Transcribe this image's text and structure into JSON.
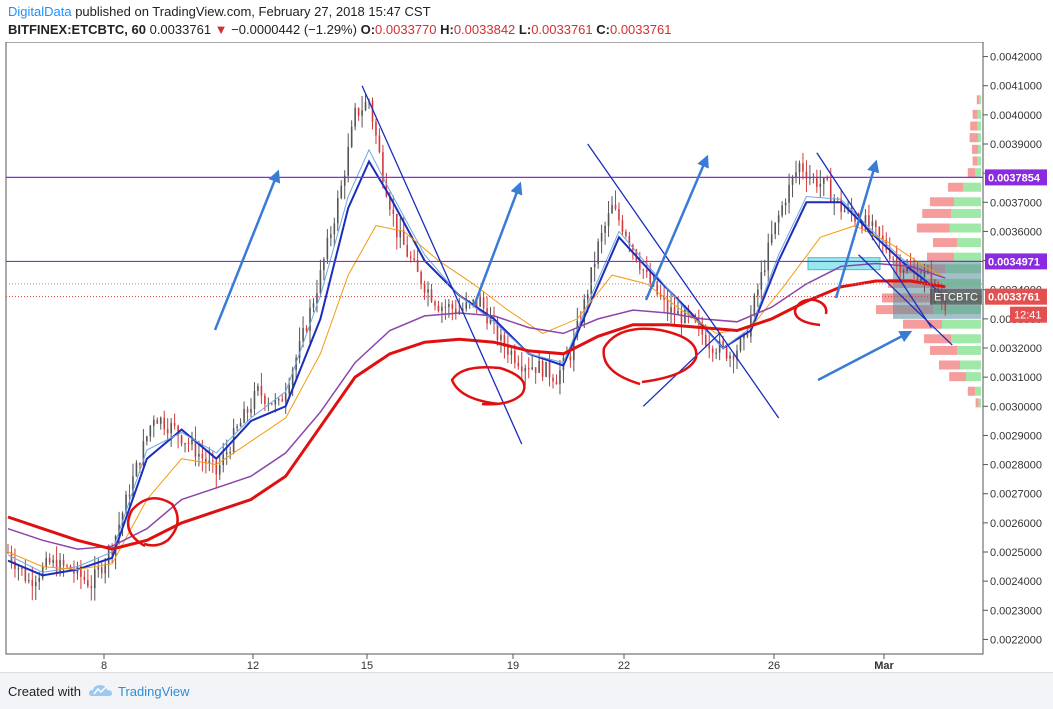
{
  "header": {
    "brand": "DigitalData",
    "published": " published on TradingView.com, February 27, 2018 15:47 CST",
    "symbol": "BITFINEX:ETCBTC, 60",
    "last": "0.0033761",
    "change_arrow": "▼",
    "change": "−0.0000442 (−1.29%)",
    "o_label": "O:",
    "o_value": "0.0033770",
    "h_label": "H:",
    "h_value": "0.0033842",
    "l_label": "L:",
    "l_value": "0.0033761",
    "c_label": "C:",
    "c_value": "0.0033761"
  },
  "footer": {
    "created_with": "Created with",
    "tradingview": "TradingView"
  },
  "colors": {
    "candle_up": "#555555",
    "candle_down": "#d23b3b",
    "ma_fast": "#1a2dbd",
    "ma_light": "#6fa8dc",
    "ma_orange": "#f39c12",
    "ma_purple": "#8e44ad",
    "ma_red": "#e01010",
    "level_line": "#8a2be2",
    "annotation_blue": "#3a7bd5",
    "annotation_red": "#e01010",
    "trend_line": "#1a2dbd"
  },
  "chart_data": {
    "type": "candlestick",
    "x_ticks": [
      "8",
      "12",
      "15",
      "19",
      "22",
      "26",
      "Mar"
    ],
    "y_ticks": [
      "0.0042000",
      "0.0041000",
      "0.0040000",
      "0.0039000",
      "0.0038000",
      "0.0037000",
      "0.0036000",
      "0.0035000",
      "0.0034000",
      "0.0033000",
      "0.0032000",
      "0.0031000",
      "0.0030000",
      "0.0029000",
      "0.0028000",
      "0.0027000",
      "0.0026000",
      "0.0025000",
      "0.0024000",
      "0.0023000",
      "0.0022000"
    ],
    "ylim": [
      0.00215,
      0.00425
    ],
    "levels": [
      {
        "label": "0.0037854",
        "value": 0.0037854
      },
      {
        "label": "0.0034971",
        "value": 0.0034971
      }
    ],
    "current_price": {
      "label": "0.0033761",
      "value": 0.0033761
    },
    "countdown": "12:41",
    "symbol_tag": "ETCBTC",
    "price_path": [
      [
        0,
        0.0025
      ],
      [
        6,
        0.0024
      ],
      [
        12,
        0.00246
      ],
      [
        18,
        0.00244
      ],
      [
        24,
        0.00239
      ],
      [
        30,
        0.00252
      ],
      [
        36,
        0.00275
      ],
      [
        42,
        0.00297
      ],
      [
        48,
        0.00292
      ],
      [
        54,
        0.00285
      ],
      [
        60,
        0.00277
      ],
      [
        66,
        0.00292
      ],
      [
        72,
        0.00305
      ],
      [
        78,
        0.003
      ],
      [
        84,
        0.0032
      ],
      [
        90,
        0.00345
      ],
      [
        96,
        0.00375
      ],
      [
        100,
        0.004
      ],
      [
        104,
        0.00405
      ],
      [
        108,
        0.0038
      ],
      [
        112,
        0.0036
      ],
      [
        118,
        0.00345
      ],
      [
        124,
        0.00335
      ],
      [
        130,
        0.00333
      ],
      [
        136,
        0.00336
      ],
      [
        142,
        0.00322
      ],
      [
        148,
        0.00315
      ],
      [
        154,
        0.00313
      ],
      [
        158,
        0.0031
      ],
      [
        162,
        0.00318
      ],
      [
        166,
        0.00335
      ],
      [
        170,
        0.00355
      ],
      [
        174,
        0.00368
      ],
      [
        178,
        0.0036
      ],
      [
        184,
        0.00344
      ],
      [
        190,
        0.00333
      ],
      [
        196,
        0.0033
      ],
      [
        202,
        0.00322
      ],
      [
        208,
        0.00318
      ],
      [
        212,
        0.00322
      ],
      [
        216,
        0.0034
      ],
      [
        220,
        0.00358
      ],
      [
        224,
        0.00372
      ],
      [
        228,
        0.00383
      ],
      [
        232,
        0.00378
      ],
      [
        236,
        0.00375
      ],
      [
        240,
        0.00368
      ],
      [
        244,
        0.00365
      ],
      [
        248,
        0.00362
      ],
      [
        252,
        0.00356
      ],
      [
        256,
        0.0035
      ],
      [
        260,
        0.00346
      ],
      [
        264,
        0.00345
      ],
      [
        268,
        0.00338
      ],
      [
        270,
        0.00335
      ]
    ],
    "ma_series": [
      {
        "key": "ma_fast",
        "width": 2,
        "points": [
          [
            0,
            0.00247
          ],
          [
            10,
            0.00242
          ],
          [
            20,
            0.00244
          ],
          [
            30,
            0.00248
          ],
          [
            40,
            0.00282
          ],
          [
            50,
            0.00292
          ],
          [
            60,
            0.00282
          ],
          [
            70,
            0.00295
          ],
          [
            80,
            0.003
          ],
          [
            90,
            0.0033
          ],
          [
            98,
            0.00368
          ],
          [
            104,
            0.00384
          ],
          [
            110,
            0.00372
          ],
          [
            120,
            0.0035
          ],
          [
            130,
            0.00338
          ],
          [
            140,
            0.0033
          ],
          [
            150,
            0.00318
          ],
          [
            160,
            0.00314
          ],
          [
            168,
            0.00336
          ],
          [
            176,
            0.00358
          ],
          [
            186,
            0.00345
          ],
          [
            196,
            0.00333
          ],
          [
            206,
            0.0032
          ],
          [
            214,
            0.00326
          ],
          [
            222,
            0.0035
          ],
          [
            230,
            0.0037
          ],
          [
            240,
            0.0037
          ],
          [
            250,
            0.00358
          ],
          [
            260,
            0.00347
          ],
          [
            270,
            0.00338
          ]
        ]
      },
      {
        "key": "ma_light",
        "width": 1,
        "points": [
          [
            0,
            0.00249
          ],
          [
            10,
            0.00243
          ],
          [
            20,
            0.00245
          ],
          [
            30,
            0.0025
          ],
          [
            40,
            0.00285
          ],
          [
            50,
            0.00291
          ],
          [
            60,
            0.00284
          ],
          [
            70,
            0.00296
          ],
          [
            80,
            0.00305
          ],
          [
            90,
            0.00338
          ],
          [
            98,
            0.00372
          ],
          [
            104,
            0.00388
          ],
          [
            110,
            0.00374
          ],
          [
            120,
            0.00352
          ],
          [
            130,
            0.00338
          ],
          [
            140,
            0.00329
          ],
          [
            150,
            0.00318
          ],
          [
            160,
            0.00315
          ],
          [
            168,
            0.00338
          ],
          [
            176,
            0.0036
          ],
          [
            186,
            0.00346
          ],
          [
            196,
            0.00332
          ],
          [
            206,
            0.0032
          ],
          [
            214,
            0.00327
          ],
          [
            222,
            0.00352
          ],
          [
            230,
            0.00372
          ],
          [
            240,
            0.00371
          ],
          [
            250,
            0.00359
          ],
          [
            260,
            0.00348
          ],
          [
            270,
            0.00338
          ]
        ]
      },
      {
        "key": "ma_orange",
        "width": 1,
        "points": [
          [
            0,
            0.0025
          ],
          [
            10,
            0.00245
          ],
          [
            20,
            0.00244
          ],
          [
            30,
            0.00246
          ],
          [
            40,
            0.00268
          ],
          [
            50,
            0.00282
          ],
          [
            60,
            0.0028
          ],
          [
            70,
            0.00288
          ],
          [
            80,
            0.00296
          ],
          [
            90,
            0.00318
          ],
          [
            98,
            0.00345
          ],
          [
            106,
            0.00362
          ],
          [
            114,
            0.0036
          ],
          [
            124,
            0.0035
          ],
          [
            134,
            0.00342
          ],
          [
            144,
            0.00333
          ],
          [
            154,
            0.00325
          ],
          [
            164,
            0.0033
          ],
          [
            174,
            0.00345
          ],
          [
            184,
            0.00342
          ],
          [
            194,
            0.00333
          ],
          [
            204,
            0.00325
          ],
          [
            214,
            0.00327
          ],
          [
            224,
            0.00342
          ],
          [
            234,
            0.00358
          ],
          [
            244,
            0.00362
          ],
          [
            254,
            0.00356
          ],
          [
            264,
            0.00348
          ],
          [
            270,
            0.00344
          ]
        ]
      },
      {
        "key": "ma_purple",
        "width": 1.5,
        "points": [
          [
            0,
            0.00258
          ],
          [
            10,
            0.00254
          ],
          [
            20,
            0.00251
          ],
          [
            30,
            0.00252
          ],
          [
            40,
            0.00258
          ],
          [
            50,
            0.00268
          ],
          [
            60,
            0.00272
          ],
          [
            70,
            0.00276
          ],
          [
            80,
            0.00284
          ],
          [
            90,
            0.00298
          ],
          [
            100,
            0.00315
          ],
          [
            110,
            0.00326
          ],
          [
            120,
            0.00331
          ],
          [
            130,
            0.00332
          ],
          [
            140,
            0.00331
          ],
          [
            150,
            0.00327
          ],
          [
            160,
            0.00325
          ],
          [
            170,
            0.0033
          ],
          [
            180,
            0.00333
          ],
          [
            190,
            0.00332
          ],
          [
            200,
            0.0033
          ],
          [
            210,
            0.00329
          ],
          [
            220,
            0.00334
          ],
          [
            230,
            0.00342
          ],
          [
            240,
            0.00348
          ],
          [
            250,
            0.00349
          ],
          [
            260,
            0.00348
          ],
          [
            270,
            0.00344
          ]
        ]
      },
      {
        "key": "ma_red",
        "width": 3,
        "points": [
          [
            0,
            0.00262
          ],
          [
            10,
            0.00258
          ],
          [
            20,
            0.00254
          ],
          [
            30,
            0.00251
          ],
          [
            40,
            0.00254
          ],
          [
            50,
            0.0026
          ],
          [
            60,
            0.00264
          ],
          [
            70,
            0.00268
          ],
          [
            80,
            0.00276
          ],
          [
            90,
            0.00293
          ],
          [
            100,
            0.0031
          ],
          [
            110,
            0.00318
          ],
          [
            120,
            0.00322
          ],
          [
            130,
            0.00323
          ],
          [
            140,
            0.00322
          ],
          [
            150,
            0.00319
          ],
          [
            160,
            0.00318
          ],
          [
            170,
            0.00324
          ],
          [
            180,
            0.00328
          ],
          [
            190,
            0.00328
          ],
          [
            200,
            0.00327
          ],
          [
            210,
            0.00326
          ],
          [
            220,
            0.0033
          ],
          [
            230,
            0.00336
          ],
          [
            240,
            0.00341
          ],
          [
            250,
            0.00343
          ],
          [
            260,
            0.00343
          ],
          [
            270,
            0.00341
          ]
        ]
      }
    ],
    "trend_lines": [
      [
        [
          102,
          0.0041
        ],
        [
          148,
          0.00287
        ]
      ],
      [
        [
          167,
          0.0039
        ],
        [
          222,
          0.00296
        ]
      ],
      [
        [
          233,
          0.00387
        ],
        [
          266,
          0.00327
        ]
      ],
      [
        [
          183,
          0.003
        ],
        [
          205,
          0.00325
        ]
      ],
      [
        [
          245,
          0.00352
        ],
        [
          272,
          0.00321
        ]
      ]
    ],
    "volume_profile": [
      {
        "p": 0.00405,
        "g": 3,
        "r": 4
      },
      {
        "p": 0.004,
        "g": 6,
        "r": 8
      },
      {
        "p": 0.00396,
        "g": 6,
        "r": 12
      },
      {
        "p": 0.00392,
        "g": 5,
        "r": 14
      },
      {
        "p": 0.00388,
        "g": 5,
        "r": 10
      },
      {
        "p": 0.00384,
        "g": 6,
        "r": 8
      },
      {
        "p": 0.0038,
        "g": 10,
        "r": 12
      },
      {
        "p": 0.00375,
        "g": 30,
        "r": 25
      },
      {
        "p": 0.0037,
        "g": 45,
        "r": 40
      },
      {
        "p": 0.00366,
        "g": 50,
        "r": 48
      },
      {
        "p": 0.00361,
        "g": 52,
        "r": 55
      },
      {
        "p": 0.00356,
        "g": 40,
        "r": 40
      },
      {
        "p": 0.00351,
        "g": 45,
        "r": 45
      },
      {
        "p": 0.00347,
        "g": 60,
        "r": 75
      },
      {
        "p": 0.00342,
        "g": 70,
        "r": 85
      },
      {
        "p": 0.00337,
        "g": 75,
        "r": 90
      },
      {
        "p": 0.00333,
        "g": 80,
        "r": 95
      },
      {
        "p": 0.00328,
        "g": 65,
        "r": 65
      },
      {
        "p": 0.00323,
        "g": 50,
        "r": 45
      },
      {
        "p": 0.00319,
        "g": 40,
        "r": 45
      },
      {
        "p": 0.00314,
        "g": 35,
        "r": 35
      },
      {
        "p": 0.0031,
        "g": 25,
        "r": 28
      },
      {
        "p": 0.00305,
        "g": 10,
        "r": 12
      },
      {
        "p": 0.00301,
        "g": 4,
        "r": 5
      }
    ]
  }
}
